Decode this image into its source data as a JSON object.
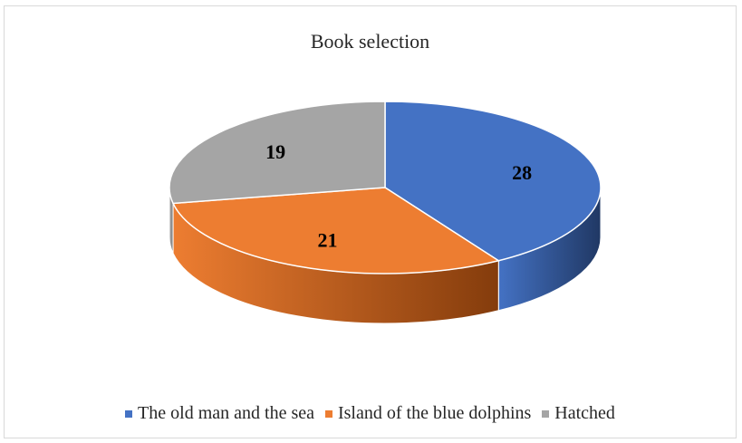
{
  "chart_data": {
    "type": "pie",
    "title": "Book selection",
    "categories": [
      "The old man and the sea",
      "Island of the blue dolphins",
      "Hatched"
    ],
    "values": [
      28,
      21,
      19
    ],
    "colors": [
      "#4472c4",
      "#ed7d31",
      "#a5a5a5"
    ],
    "side_colors": [
      "#203864",
      "#843c0c",
      "#7f7f7f"
    ],
    "legend_position": "bottom",
    "three_d": true
  }
}
